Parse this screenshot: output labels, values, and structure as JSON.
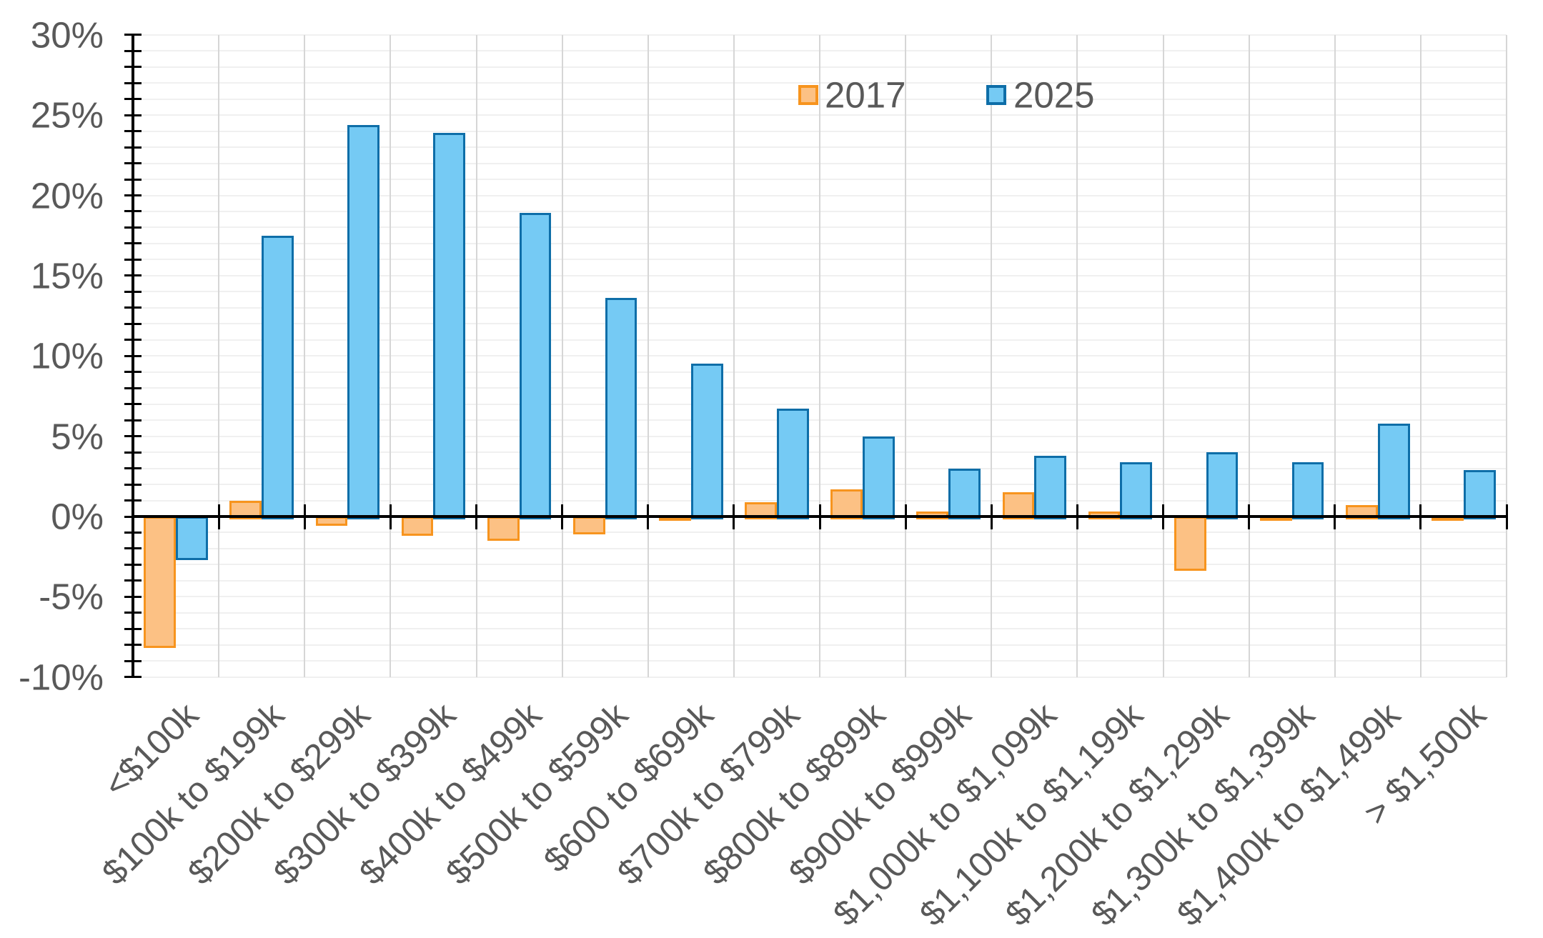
{
  "chart_data": {
    "type": "bar",
    "title": "",
    "xlabel": "",
    "ylabel": "",
    "categories": [
      "<$100k",
      "$100k to $199k",
      "$200k to $299k",
      "$300k to $399k",
      "$400k to $499k",
      "$500k to $599k",
      "$600 to $699k",
      "$700k to $799k",
      "$800k to $899k",
      "$900k to $999k",
      "$1,000k to $1,099k",
      "$1,100k to $1,199k",
      "$1,200k to $1,299k",
      "$1,300k to $1,399k",
      "$1,400k to $1,499k",
      "> $1,500k"
    ],
    "series": [
      {
        "name": "2017",
        "values": [
          -8.2,
          1.0,
          -0.6,
          -1.2,
          -1.5,
          -1.1,
          -0.1,
          0.9,
          1.7,
          0.3,
          1.5,
          0.3,
          -3.4,
          -0.2,
          0.7,
          -0.2
        ],
        "fill_color": "#FCC184",
        "border_color": "#F7941E"
      },
      {
        "name": "2025",
        "values": [
          -2.7,
          17.5,
          24.4,
          23.9,
          18.9,
          13.6,
          9.5,
          6.7,
          5.0,
          3.0,
          3.8,
          3.4,
          4.0,
          3.4,
          5.8,
          2.9
        ],
        "fill_color": "#75CAF4",
        "border_color": "#0E6EA8"
      }
    ],
    "ylim": [
      -10,
      30
    ],
    "ytick_major_step": 5,
    "ytick_minor_step": 1,
    "ytick_labels": [
      "30%",
      "25%",
      "20%",
      "15%",
      "10%",
      "5%",
      "0%",
      "-5%",
      "-10%"
    ],
    "grid": {
      "horizontal_minor": true,
      "vertical_category_boundaries": true,
      "horizontal_color": "#f0f0f0",
      "vertical_color": "#d6d6d6"
    },
    "axis_color": "#000000",
    "label_color": "#595959",
    "legend_position": "top-inside",
    "legend": [
      {
        "label": "2017",
        "fill_color": "#FCC184",
        "border_color": "#F7941E"
      },
      {
        "label": "2025",
        "fill_color": "#75CAF4",
        "border_color": "#0E6EA8"
      }
    ]
  }
}
